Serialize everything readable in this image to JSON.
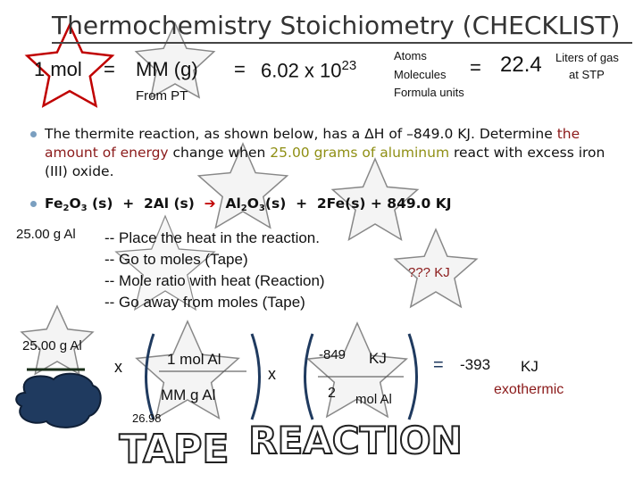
{
  "title": "Thermochemistry Stoichiometry (CHECKLIST)",
  "conversion": {
    "mol": "1 mol",
    "eq1": "=",
    "mm": "MM (g)",
    "eq2": "=",
    "avogadro": "6.02 x 10",
    "exponent": "23",
    "particles": [
      "Atoms",
      "Molecules",
      "Formula units"
    ],
    "eq3": "=",
    "volume": "22.4",
    "volume_unit": [
      "Liters of gas",
      "at STP"
    ],
    "mm_note": "From PT"
  },
  "bullets": {
    "problem": [
      "The thermite reaction, as shown below, has a ΔH of –849.0 KJ. Determine ",
      "the amount of energy",
      " change when ",
      "25.00 grams of aluminum",
      " react with excess iron (III) oxide."
    ],
    "reaction": [
      "Fe",
      "2",
      "O",
      "3",
      " (s)  +  2Al (s)  ",
      "➔",
      "  Al",
      "2",
      "O",
      "3",
      "(s)  +  2Fe(s) + 849.0 KJ"
    ]
  },
  "steps": {
    "given": "25.00 g Al",
    "list": [
      "-- Place the heat in the reaction.",
      "-- Go to moles (Tape)",
      "-- Mole ratio with heat (Reaction)",
      "-- Go away from moles (Tape)"
    ],
    "unknown": "??? KJ"
  },
  "calculation": {
    "given": "25.00 g Al",
    "times1": "x",
    "num1": "1  mol Al",
    "den1": "MM  g Al",
    "molar_mass": "26.98",
    "times2": "x",
    "num2_value": "-849",
    "num2_unit": "KJ",
    "den2_value": "2",
    "den2_unit": "mol Al",
    "equals": "=",
    "result": "-393",
    "result_unit": "KJ",
    "note": "exothermic",
    "tape": "TAPE",
    "reaction": "REACTION"
  }
}
